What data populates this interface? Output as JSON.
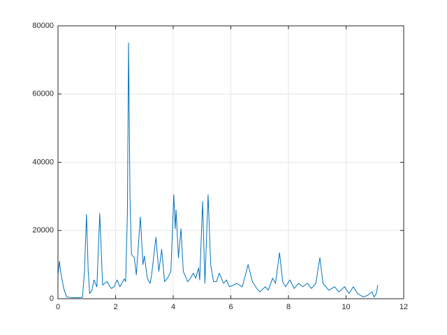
{
  "chart_data": {
    "type": "line",
    "color": "#0072bd",
    "grid": true,
    "xlim": [
      0,
      12
    ],
    "xticks": [
      0,
      2,
      4,
      6,
      8,
      10,
      12
    ],
    "ylim": [
      0,
      80000
    ],
    "yticks": [
      0,
      20000,
      40000,
      60000,
      80000
    ],
    "x": [
      0,
      0.05,
      0.1,
      0.2,
      0.3,
      0.5,
      0.7,
      0.85,
      0.92,
      0.99,
      1.05,
      1.1,
      1.18,
      1.25,
      1.35,
      1.45,
      1.55,
      1.62,
      1.7,
      1.85,
      1.95,
      2.05,
      2.15,
      2.3,
      2.35,
      2.41,
      2.45,
      2.5,
      2.55,
      2.65,
      2.72,
      2.86,
      2.95,
      3.0,
      3.1,
      3.2,
      3.25,
      3.4,
      3.5,
      3.6,
      3.7,
      3.8,
      3.92,
      4.02,
      4.07,
      4.1,
      4.18,
      4.27,
      4.35,
      4.5,
      4.6,
      4.7,
      4.78,
      4.88,
      4.92,
      5.02,
      5.1,
      5.21,
      5.3,
      5.4,
      5.5,
      5.6,
      5.75,
      5.85,
      5.95,
      6.1,
      6.2,
      6.4,
      6.6,
      6.75,
      6.9,
      7.0,
      7.2,
      7.3,
      7.45,
      7.55,
      7.69,
      7.8,
      7.9,
      8.05,
      8.2,
      8.35,
      8.5,
      8.65,
      8.8,
      8.95,
      9.09,
      9.2,
      9.4,
      9.6,
      9.75,
      9.95,
      10.1,
      10.25,
      10.4,
      10.6,
      10.75,
      10.9,
      10.97,
      11.05,
      11.1
    ],
    "values": [
      7000,
      11000,
      7500,
      3000,
      500,
      300,
      300,
      400,
      8000,
      24700,
      8000,
      1500,
      2500,
      5500,
      3500,
      25000,
      4000,
      4500,
      5000,
      3000,
      3500,
      5500,
      3500,
      5800,
      5000,
      25000,
      75000,
      30000,
      13000,
      12000,
      7000,
      24000,
      10000,
      12500,
      6000,
      4500,
      7000,
      18000,
      8000,
      14500,
      5000,
      6000,
      8000,
      30500,
      20500,
      26000,
      12000,
      20500,
      8000,
      5000,
      6000,
      7500,
      6000,
      9000,
      5500,
      28500,
      4500,
      30500,
      10000,
      5000,
      5000,
      7500,
      4500,
      5500,
      3500,
      4000,
      4500,
      3500,
      10000,
      5000,
      3000,
      2000,
      3500,
      2500,
      6000,
      4500,
      13500,
      5000,
      3500,
      5500,
      3000,
      4500,
      3500,
      4500,
      3000,
      4500,
      12000,
      4500,
      2500,
      3500,
      2000,
      3500,
      1500,
      3500,
      1500,
      500,
      1000,
      2000,
      500,
      1500,
      4000
    ]
  }
}
